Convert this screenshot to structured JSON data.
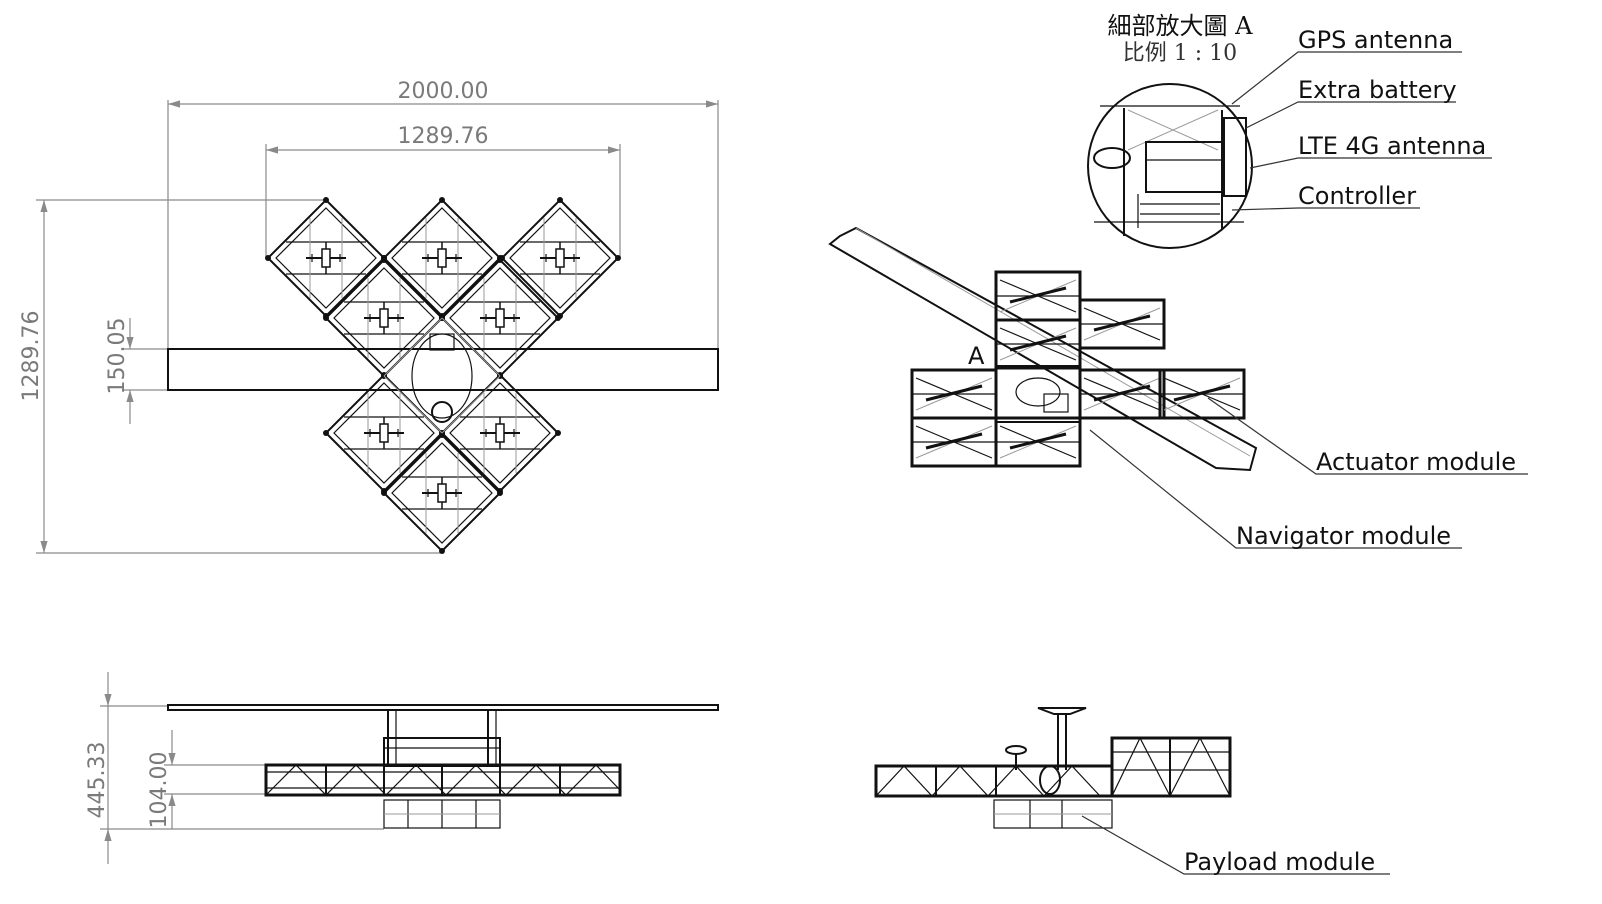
{
  "dimensions": {
    "top_width": "2000.00",
    "top_inner_width": "1289.76",
    "top_height": "1289.76",
    "wing_chord": "150.05",
    "side_height": "445.33",
    "side_frame_height": "104.00"
  },
  "detail": {
    "title": "細部放大圖 A",
    "scale": "比例 1 : 10"
  },
  "detail_marker": "A",
  "callouts": {
    "gps_antenna": "GPS antenna",
    "extra_battery": "Extra battery",
    "lte_antenna": "LTE 4G antenna",
    "controller": "Controller",
    "actuator_module": "Actuator module",
    "navigator_module": "Navigator module",
    "payload_module": "Payload module"
  }
}
